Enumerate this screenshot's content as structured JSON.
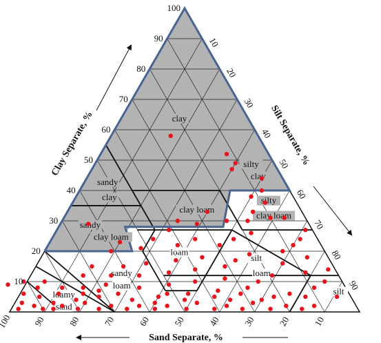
{
  "chart_data": {
    "type": "scatter",
    "subtype": "soil texture ternary diagram",
    "axes": {
      "clay": {
        "label": "Clay Separate, %",
        "ticks": [
          "10",
          "20",
          "30",
          "40",
          "50",
          "60",
          "70",
          "80",
          "90",
          "100"
        ]
      },
      "silt": {
        "label": "Silt Separate, %",
        "ticks": [
          "10",
          "20",
          "30",
          "40",
          "50",
          "60",
          "70",
          "80",
          "90"
        ]
      },
      "sand": {
        "label": "Sand Separate, %",
        "ticks": [
          "100",
          "90",
          "80",
          "70",
          "60",
          "50",
          "40",
          "30",
          "20",
          "10"
        ]
      },
      "range": [
        0,
        100
      ]
    },
    "grid": true,
    "highlight": {
      "color": "#b3b3b3",
      "border_color": "#4a6491"
    },
    "point_color": "#e8141b",
    "classes": [
      {
        "label": "clay",
        "sand": 20,
        "clay": 63
      },
      {
        "label": "silty",
        "sand": 7,
        "clay": 48
      },
      {
        "label": "clay",
        "sand": 7,
        "clay": 44
      },
      {
        "label": "sandy",
        "sand": 51,
        "clay": 42
      },
      {
        "label": "clay",
        "sand": 53,
        "clay": 37
      },
      {
        "label": "clay loam",
        "sand": 30,
        "clay": 33
      },
      {
        "label": "silty",
        "sand": 8,
        "clay": 36
      },
      {
        "label": "clay loam",
        "sand": 9,
        "clay": 31
      },
      {
        "label": "sandy",
        "sand": 63,
        "clay": 28
      },
      {
        "label": "clay loam",
        "sand": 59,
        "clay": 24
      },
      {
        "label": "loam",
        "sand": 42,
        "clay": 19
      },
      {
        "label": "silt",
        "sand": 21,
        "clay": 17
      },
      {
        "label": "loam",
        "sand": 22,
        "clay": 12
      },
      {
        "label": "sandy",
        "sand": 62,
        "clay": 12
      },
      {
        "label": "loam",
        "sand": 64,
        "clay": 8
      },
      {
        "label": "loamy",
        "sand": 82,
        "clay": 5
      },
      {
        "label": "sand",
        "sand": 84,
        "clay": 1
      },
      {
        "label": "silt",
        "sand": 3,
        "clay": 6
      }
    ],
    "points": [
      {
        "sand": 25,
        "clay": 58
      },
      {
        "sand": 12,
        "clay": 52
      },
      {
        "sand": 11,
        "clay": 49
      },
      {
        "sand": 13,
        "clay": 47
      },
      {
        "sand": 6,
        "clay": 44
      },
      {
        "sand": 8,
        "clay": 40
      },
      {
        "sand": 12,
        "clay": 38
      },
      {
        "sand": 9,
        "clay": 36
      },
      {
        "sand": 14,
        "clay": 33
      },
      {
        "sand": 10,
        "clay": 31
      },
      {
        "sand": 17,
        "clay": 30
      },
      {
        "sand": 6,
        "clay": 31
      },
      {
        "sand": 27,
        "clay": 33
      },
      {
        "sand": 23,
        "clay": 30
      },
      {
        "sand": 32,
        "clay": 29
      },
      {
        "sand": 37,
        "clay": 30
      },
      {
        "sand": 41,
        "clay": 27
      },
      {
        "sand": 63,
        "clay": 29
      },
      {
        "sand": 2,
        "clay": 27
      },
      {
        "sand": 5,
        "clay": 24
      },
      {
        "sand": 8,
        "clay": 22
      },
      {
        "sand": 12,
        "clay": 20
      },
      {
        "sand": 6,
        "clay": 18
      },
      {
        "sand": 14,
        "clay": 16
      },
      {
        "sand": 9,
        "clay": 13
      },
      {
        "sand": 18,
        "clay": 26
      },
      {
        "sand": 24,
        "clay": 24
      },
      {
        "sand": 29,
        "clay": 22
      },
      {
        "sand": 35,
        "clay": 24
      },
      {
        "sand": 41,
        "clay": 22
      },
      {
        "sand": 47,
        "clay": 24
      },
      {
        "sand": 52,
        "clay": 21
      },
      {
        "sand": 57,
        "clay": 23
      },
      {
        "sand": 61,
        "clay": 20
      },
      {
        "sand": 22,
        "clay": 19
      },
      {
        "sand": 27,
        "clay": 17
      },
      {
        "sand": 31,
        "clay": 15
      },
      {
        "sand": 36,
        "clay": 18
      },
      {
        "sand": 40,
        "clay": 14
      },
      {
        "sand": 44,
        "clay": 17
      },
      {
        "sand": 48,
        "clay": 13
      },
      {
        "sand": 53,
        "clay": 16
      },
      {
        "sand": 57,
        "clay": 12
      },
      {
        "sand": 60,
        "clay": 15
      },
      {
        "sand": 65,
        "clay": 12
      },
      {
        "sand": 19,
        "clay": 12
      },
      {
        "sand": 24,
        "clay": 10
      },
      {
        "sand": 28,
        "clay": 8
      },
      {
        "sand": 33,
        "clay": 11
      },
      {
        "sand": 37,
        "clay": 7
      },
      {
        "sand": 42,
        "clay": 10
      },
      {
        "sand": 46,
        "clay": 6
      },
      {
        "sand": 50,
        "clay": 9
      },
      {
        "sand": 55,
        "clay": 5
      },
      {
        "sand": 59,
        "clay": 8
      },
      {
        "sand": 63,
        "clay": 4
      },
      {
        "sand": 68,
        "clay": 9
      },
      {
        "sand": 72,
        "clay": 5
      },
      {
        "sand": 75,
        "clay": 8
      },
      {
        "sand": 79,
        "clay": 4
      },
      {
        "sand": 83,
        "clay": 6
      },
      {
        "sand": 86,
        "clay": 3
      },
      {
        "sand": 89,
        "clay": 5
      },
      {
        "sand": 92,
        "clay": 2
      },
      {
        "sand": 95,
        "clay": 3
      },
      {
        "sand": 97,
        "clay": 1
      },
      {
        "sand": 93,
        "clay": 6
      },
      {
        "sand": 90,
        "clay": 1
      },
      {
        "sand": 87,
        "clay": 1
      },
      {
        "sand": 84,
        "clay": 2
      },
      {
        "sand": 80,
        "clay": 1
      },
      {
        "sand": 77,
        "clay": 3
      },
      {
        "sand": 74,
        "clay": 1
      },
      {
        "sand": 70,
        "clay": 2
      },
      {
        "sand": 66,
        "clay": 1
      },
      {
        "sand": 62,
        "clay": 2
      },
      {
        "sand": 58,
        "clay": 1
      },
      {
        "sand": 54,
        "clay": 2
      },
      {
        "sand": 49,
        "clay": 1
      },
      {
        "sand": 45,
        "clay": 3
      },
      {
        "sand": 41,
        "clay": 1
      },
      {
        "sand": 37,
        "clay": 2
      },
      {
        "sand": 33,
        "clay": 1
      },
      {
        "sand": 29,
        "clay": 3
      },
      {
        "sand": 25,
        "clay": 1
      },
      {
        "sand": 20,
        "clay": 2
      },
      {
        "sand": 16,
        "clay": 1
      },
      {
        "sand": 12,
        "clay": 2
      },
      {
        "sand": 17,
        "clay": 6
      },
      {
        "sand": 22,
        "clay": 5
      },
      {
        "sand": 26,
        "clay": 4
      },
      {
        "sand": 31,
        "clay": 6
      },
      {
        "sand": 35,
        "clay": 4
      },
      {
        "sand": 39,
        "clay": 5
      },
      {
        "sand": 48,
        "clay": 4
      },
      {
        "sand": 52,
        "clay": 6
      },
      {
        "sand": 57,
        "clay": 3
      },
      {
        "sand": 66,
        "clay": 6
      },
      {
        "sand": 71,
        "clay": 7
      },
      {
        "sand": 76,
        "clay": 6
      },
      {
        "sand": 81,
        "clay": 8
      },
      {
        "sand": 85,
        "clay": 10
      },
      {
        "sand": 88,
        "clay": 8
      },
      {
        "sand": 96,
        "clay": 9
      },
      {
        "sand": 91,
        "clay": 10
      },
      {
        "sand": 73,
        "clay": 12
      },
      {
        "sand": 69,
        "clay": 15
      },
      {
        "sand": 9,
        "clay": 8
      },
      {
        "sand": 13,
        "clay": 5
      },
      {
        "sand": 5,
        "clay": 10
      },
      {
        "sand": 2,
        "clay": 14
      },
      {
        "sand": 4,
        "clay": 5
      }
    ]
  }
}
